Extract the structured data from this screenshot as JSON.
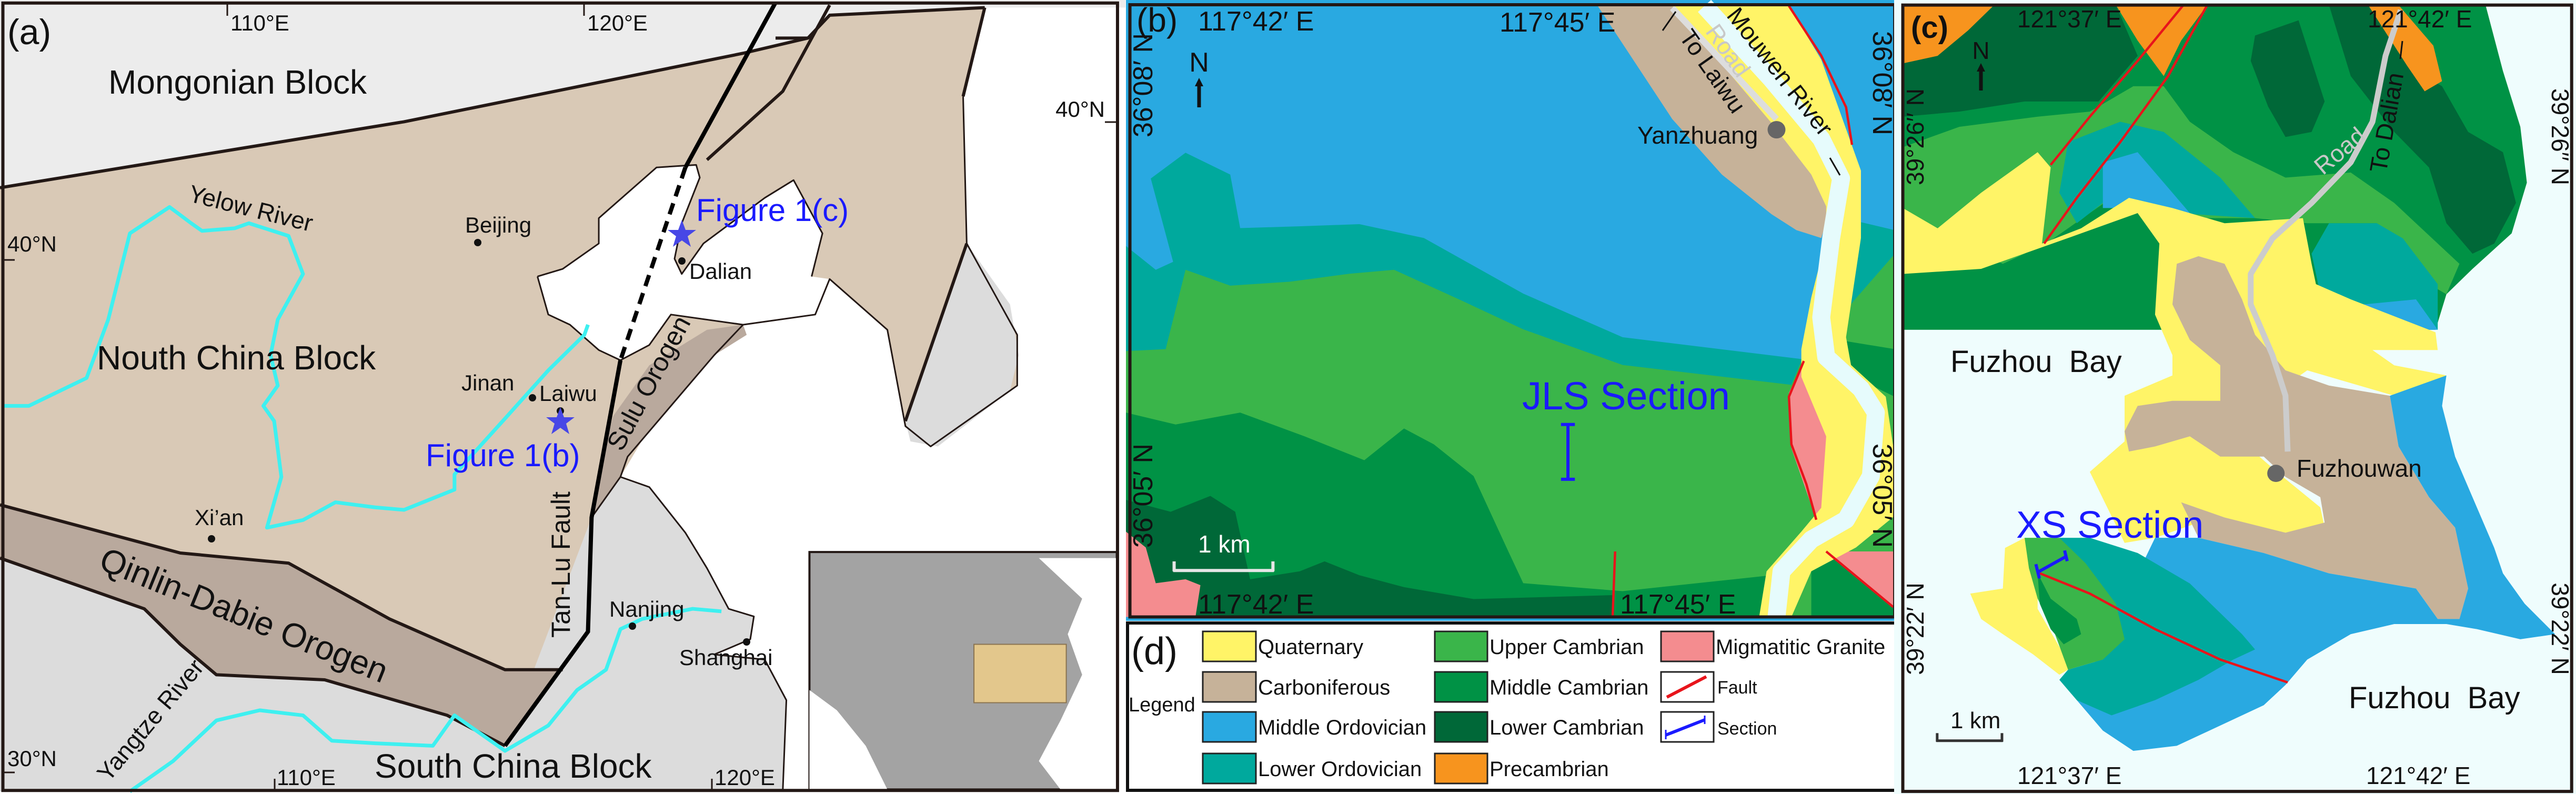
{
  "colors": {
    "quaternary": "#fff467",
    "carboniferous": "#c6b299",
    "middle_ordovician": "#29a9e1",
    "lower_ordovician": "#00a99d",
    "upper_cambrian": "#3ab54a",
    "middle_cambrian": "#009245",
    "lower_cambrian": "#006838",
    "precambrian": "#f7941e",
    "migmatitic_granite": "#f48c8f",
    "fault": "#e8141b",
    "section": "#1a1aff",
    "north_china_block": "#d9c9b6",
    "orogen": "#b9a99d",
    "south_china_block": "#dcdcdc",
    "river": "#3ef0f0"
  },
  "panel_a": {
    "label": "(a)",
    "lon_top": [
      "110°E",
      "120°E"
    ],
    "lon_bottom": [
      "110°E",
      "120°E"
    ],
    "lat_left": [
      "40°N",
      "30°N"
    ],
    "lat_right": [
      "40°N"
    ],
    "blocks": [
      "Mongonian Block",
      "Nouth China Block",
      "South China Block"
    ],
    "orogens": [
      "Qinlin-Dabie Orogen",
      "Sulu Orogen"
    ],
    "fault": "Tan-Lu Fault",
    "rivers": [
      "Yelow River",
      "Yangtze River"
    ],
    "cities": [
      "Beijing",
      "Dalian",
      "Jinan",
      "Laiwu",
      "Xi’an",
      "Nanjing",
      "Shanghai"
    ],
    "figure_refs": [
      "Figure 1(c)",
      "Figure 1(b)"
    ],
    "star_icon": "star-icon"
  },
  "panel_b": {
    "label": "(b)",
    "lon_top": [
      "117°42′ E",
      "117°45′ E"
    ],
    "lon_bottom": [
      "117°42′ E",
      "117°45′ E"
    ],
    "lat": [
      "36°08′ N",
      "36°05′ N"
    ],
    "north": "N",
    "village": "Yanzhuang",
    "road": "Road",
    "road_dest": "To Laiwu",
    "river": "Mouwen River",
    "section": "JLS Section",
    "scale": "1 km"
  },
  "panel_c": {
    "label": "(c)",
    "lon_top": [
      "121°37′ E",
      "121°42′ E"
    ],
    "lon_bottom": [
      "121°37′ E",
      "121°42′ E"
    ],
    "lat": [
      "39°26′′ N",
      "39°22′ N"
    ],
    "north": "N",
    "bay": "Fuzhou  Bay",
    "town": "Fuzhouwan",
    "road": "Road",
    "road_dest": "To Dalian",
    "section": "XS Section",
    "scale": "1 km"
  },
  "panel_d": {
    "label": "(d)",
    "legend_title": "Legend",
    "items": [
      {
        "label": "Quaternary"
      },
      {
        "label": "Carboniferous"
      },
      {
        "label": "Middle Ordovician"
      },
      {
        "label": "Lower Ordovician"
      },
      {
        "label": "Upper Cambrian"
      },
      {
        "label": "Middle Cambrian"
      },
      {
        "label": "Lower Cambrian"
      },
      {
        "label": "Precambrian"
      },
      {
        "label": "Migmatitic Granite"
      },
      {
        "label": "Fault"
      },
      {
        "label": "Section"
      }
    ]
  }
}
